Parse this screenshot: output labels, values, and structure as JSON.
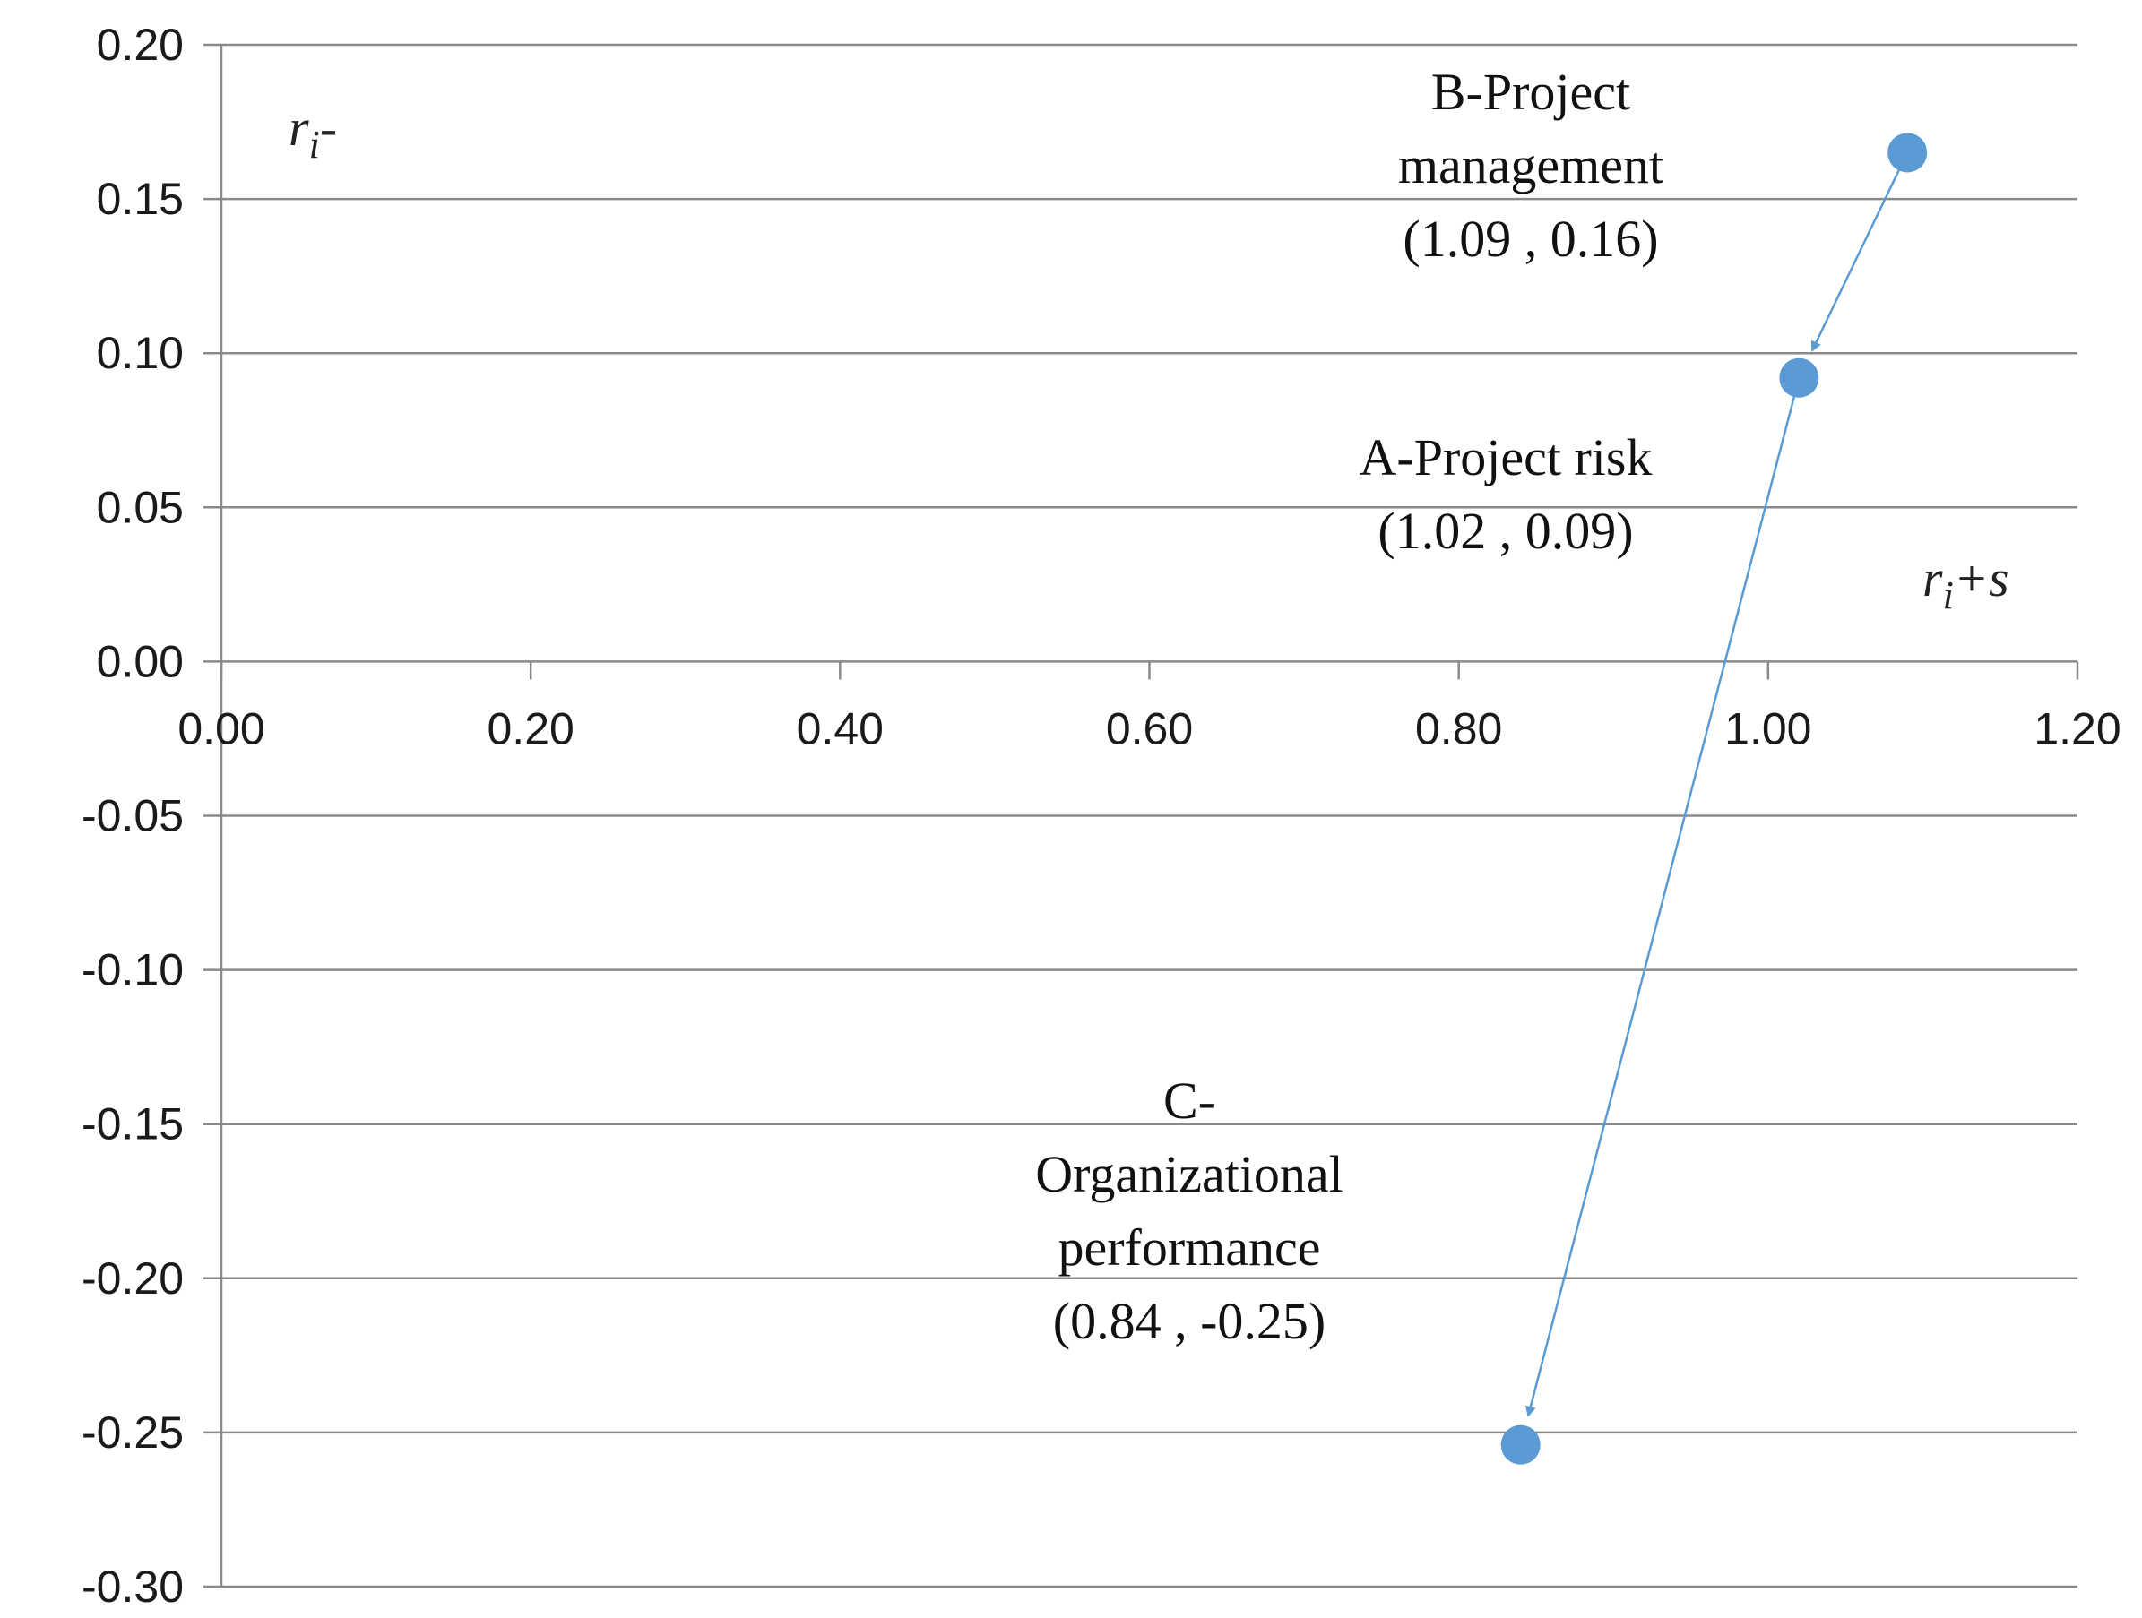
{
  "chart_data": {
    "type": "scatter",
    "xlim": [
      0,
      1.2
    ],
    "ylim": [
      -0.3,
      0.2
    ],
    "x_ticks": [
      "0.00",
      "0.20",
      "0.40",
      "0.60",
      "0.80",
      "1.00",
      "1.20"
    ],
    "y_ticks": [
      "0.20",
      "0.15",
      "0.10",
      "0.05",
      "0.00",
      "-0.05",
      "-0.10",
      "-0.15",
      "-0.20",
      "-0.25",
      "-0.30"
    ],
    "x_tick_values": [
      0,
      0.2,
      0.4,
      0.6,
      0.8,
      1.0,
      1.2
    ],
    "y_tick_values": [
      0.2,
      0.15,
      0.1,
      0.05,
      0,
      -0.05,
      -0.1,
      -0.15,
      -0.2,
      -0.25,
      -0.3
    ],
    "grid": "horizontal",
    "xlabel": {
      "base": "r",
      "sub": "i",
      "suffix": "+s"
    },
    "ylabel": {
      "base": "r",
      "sub": "i",
      "suffix": "-"
    },
    "point_color": "#5b9bd5",
    "arrow_color": "#5b9bd5",
    "points": [
      {
        "id": "A",
        "x": 1.02,
        "y": 0.092,
        "label_lines": [
          "A-Project risk",
          "(1.02 , 0.09)"
        ]
      },
      {
        "id": "B",
        "x": 1.09,
        "y": 0.165,
        "label_lines": [
          "B-Project",
          "management",
          "(1.09 , 0.16)"
        ]
      },
      {
        "id": "C",
        "x": 0.84,
        "y": -0.254,
        "label_lines": [
          "C-",
          "Organizational",
          "performance",
          "(0.84 , -0.25)"
        ]
      }
    ],
    "arrows": [
      {
        "from": "B",
        "to": "A"
      },
      {
        "from": "A",
        "to": "C"
      }
    ]
  }
}
